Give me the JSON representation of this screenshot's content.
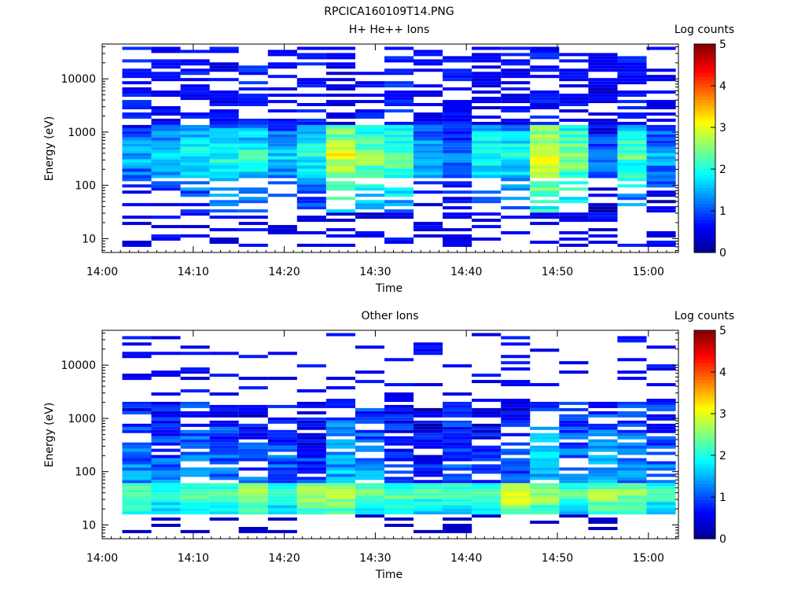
{
  "figure_title": "RPCICA160109T14.PNG",
  "colormap": [
    "#00008f",
    "#0000ff",
    "#0080ff",
    "#00ffff",
    "#80ff80",
    "#ffff00",
    "#ff8000",
    "#ff0000",
    "#800000"
  ],
  "chart_data": [
    {
      "type": "heatmap",
      "title": "H+ He++ Ions",
      "xlabel": "Time",
      "ylabel": "Energy (eV)",
      "x_ticks": [
        "14:00",
        "14:10",
        "14:20",
        "14:30",
        "14:40",
        "14:50",
        "15:00"
      ],
      "x_tick_minutes": [
        0,
        10,
        20,
        30,
        40,
        50,
        60
      ],
      "xlim_minutes": [
        0,
        63.3
      ],
      "ylim": [
        5.5,
        45000
      ],
      "y_scale": "log",
      "y_ticks": [
        10,
        100,
        1000,
        10000
      ],
      "y_tick_labels": [
        "10",
        "100",
        "1000",
        "10000"
      ],
      "time_bins_start_minutes": [
        2.2,
        5.4,
        8.6,
        11.8,
        15.0,
        18.2,
        21.4,
        24.6,
        27.8,
        31.0,
        34.2,
        37.4,
        40.6,
        43.8,
        47.0,
        50.2,
        53.4,
        56.6,
        59.8
      ],
      "time_bin_width_minutes": 3.2,
      "colorbar_label": "Log counts",
      "colorbar_ticks": [
        "0",
        "1",
        "2",
        "3",
        "4",
        "5"
      ],
      "colorbar_range": [
        0,
        5
      ],
      "grid": false,
      "energy_band_log_counts": [
        {
          "band": "30-5000 eV",
          "profile": [
            1.5,
            1.8,
            1.9,
            2.0,
            2.1,
            1.7,
            2.0,
            3.0,
            2.6,
            2.4,
            1.7,
            1.4,
            2.1,
            2.0,
            3.1,
            2.6,
            1.3,
            2.3,
            1.5
          ]
        },
        {
          "band": "5000-40000 eV",
          "profile": [
            0.5,
            0.4,
            0.5,
            0.4,
            0.6,
            0.4,
            0.5,
            0.3,
            0.5,
            0.6,
            0.4,
            0.5,
            0.3,
            0.4,
            0.5,
            0.4,
            0.3,
            0.5,
            0.4
          ]
        }
      ]
    },
    {
      "type": "heatmap",
      "title": "Other Ions",
      "xlabel": "Time",
      "ylabel": "Energy (eV)",
      "x_ticks": [
        "14:00",
        "14:10",
        "14:20",
        "14:30",
        "14:40",
        "14:50",
        "15:00"
      ],
      "x_tick_minutes": [
        0,
        10,
        20,
        30,
        40,
        50,
        60
      ],
      "xlim_minutes": [
        0,
        63.3
      ],
      "ylim": [
        5.5,
        45000
      ],
      "y_scale": "log",
      "y_ticks": [
        10,
        100,
        1000,
        10000
      ],
      "y_tick_labels": [
        "10",
        "100",
        "1000",
        "10000"
      ],
      "time_bins_start_minutes": [
        2.2,
        5.4,
        8.6,
        11.8,
        15.0,
        18.2,
        21.4,
        24.6,
        27.8,
        31.0,
        34.2,
        37.4,
        40.6,
        43.8,
        47.0,
        50.2,
        53.4,
        56.6,
        59.8
      ],
      "time_bin_width_minutes": 3.2,
      "colorbar_label": "Log counts",
      "colorbar_ticks": [
        "0",
        "1",
        "2",
        "3",
        "4",
        "5"
      ],
      "colorbar_range": [
        0,
        5
      ],
      "grid": false,
      "energy_band_log_counts": [
        {
          "band": "15-60 eV",
          "profile": [
            2.6,
            2.2,
            2.3,
            2.4,
            2.8,
            2.3,
            2.9,
            2.8,
            2.6,
            2.4,
            2.3,
            2.4,
            2.5,
            3.1,
            2.7,
            2.4,
            2.7,
            2.6,
            2.2
          ]
        },
        {
          "band": "60-2000 eV",
          "profile": [
            1.2,
            1.1,
            1.3,
            1.2,
            1.0,
            1.1,
            0.9,
            1.5,
            1.3,
            1.0,
            0.8,
            1.1,
            0.8,
            1.0,
            1.6,
            1.2,
            1.4,
            1.3,
            1.2
          ]
        }
      ]
    }
  ]
}
